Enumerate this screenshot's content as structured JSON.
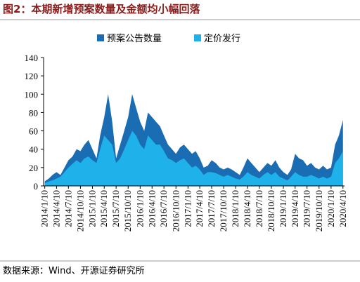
{
  "chart_data": {
    "type": "area",
    "title": "图2：本期新增预案数量及金额均小幅回落",
    "source": "数据来源：Wind、开源证券研究所",
    "x": [
      "2014/1/10",
      "2014/2/10",
      "2014/3/10",
      "2014/4/10",
      "2014/5/10",
      "2014/6/10",
      "2014/7/10",
      "2014/8/10",
      "2014/9/10",
      "2014/10/10",
      "2014/11/10",
      "2014/12/10",
      "2015/1/10",
      "2015/2/10",
      "2015/3/10",
      "2015/4/10",
      "2015/5/10",
      "2015/6/10",
      "2015/7/10",
      "2015/8/10",
      "2015/9/10",
      "2015/10/10",
      "2015/11/10",
      "2015/12/10",
      "2016/1/10",
      "2016/2/10",
      "2016/3/10",
      "2016/4/10",
      "2016/5/10",
      "2016/6/10",
      "2016/7/10",
      "2016/8/10",
      "2016/9/10",
      "2016/10/10",
      "2016/11/10",
      "2016/12/10",
      "2017/1/10",
      "2017/2/10",
      "2017/3/10",
      "2017/4/10",
      "2017/5/10",
      "2017/6/10",
      "2017/7/10",
      "2017/8/10",
      "2017/9/10",
      "2017/10/10",
      "2017/11/10",
      "2017/12/10",
      "2018/1/10",
      "2018/2/10",
      "2018/3/10",
      "2018/4/10",
      "2018/5/10",
      "2018/6/10",
      "2018/7/10",
      "2018/8/10",
      "2018/9/10",
      "2018/10/10",
      "2018/11/10",
      "2018/12/10",
      "2019/1/10",
      "2019/2/10",
      "2019/3/10",
      "2019/4/10",
      "2019/5/10",
      "2019/6/10",
      "2019/7/10",
      "2019/8/10",
      "2019/9/10",
      "2019/10/10",
      "2019/11/10",
      "2019/12/10",
      "2020/1/10",
      "2020/2/10",
      "2020/3/10",
      "2020/4/10"
    ],
    "series": [
      {
        "name": "预案公告数量",
        "color": "#1a6db3",
        "values": [
          5,
          8,
          12,
          15,
          12,
          20,
          28,
          32,
          40,
          38,
          45,
          50,
          40,
          30,
          55,
          75,
          100,
          70,
          30,
          45,
          60,
          75,
          100,
          85,
          70,
          60,
          80,
          75,
          70,
          65,
          55,
          45,
          40,
          35,
          42,
          45,
          40,
          35,
          38,
          30,
          20,
          22,
          28,
          25,
          20,
          18,
          20,
          18,
          15,
          12,
          20,
          30,
          25,
          20,
          15,
          20,
          25,
          22,
          28,
          20,
          15,
          12,
          18,
          35,
          30,
          28,
          22,
          25,
          20,
          18,
          22,
          18,
          20,
          45,
          55,
          72
        ]
      },
      {
        "name": "定价发行",
        "color": "#1fb1ea",
        "values": [
          3,
          5,
          6,
          8,
          10,
          15,
          20,
          24,
          28,
          25,
          30,
          32,
          28,
          25,
          40,
          55,
          50,
          45,
          25,
          30,
          40,
          50,
          60,
          55,
          45,
          40,
          55,
          50,
          45,
          45,
          38,
          30,
          28,
          25,
          28,
          30,
          25,
          20,
          22,
          18,
          12,
          15,
          15,
          14,
          12,
          10,
          12,
          10,
          8,
          7,
          10,
          15,
          12,
          10,
          8,
          12,
          15,
          12,
          15,
          10,
          8,
          6,
          10,
          15,
          12,
          10,
          10,
          12,
          10,
          8,
          10,
          8,
          10,
          25,
          30,
          38
        ]
      }
    ],
    "xlim": [
      "2014/1/1",
      "2020/4/22"
    ],
    "xticks": [
      "2014/1/10",
      "2014/4/10",
      "2014/7/10",
      "2014/10/10",
      "2015/1/10",
      "2015/4/10",
      "2015/7/10",
      "2015/10/10",
      "2016/1/10",
      "2016/4/10",
      "2016/7/10",
      "2016/10/10",
      "2017/1/10",
      "2017/4/10",
      "2017/7/10",
      "2017/10/10",
      "2018/1/10",
      "2018/4/10",
      "2018/7/10",
      "2018/10/10",
      "2019/1/10",
      "2019/4/10",
      "2019/7/10",
      "2019/10/10",
      "2020/1/10",
      "2020/4/10"
    ],
    "ylim": [
      0,
      140
    ],
    "yticks": [
      0,
      20,
      40,
      60,
      80,
      100,
      120,
      140
    ]
  }
}
